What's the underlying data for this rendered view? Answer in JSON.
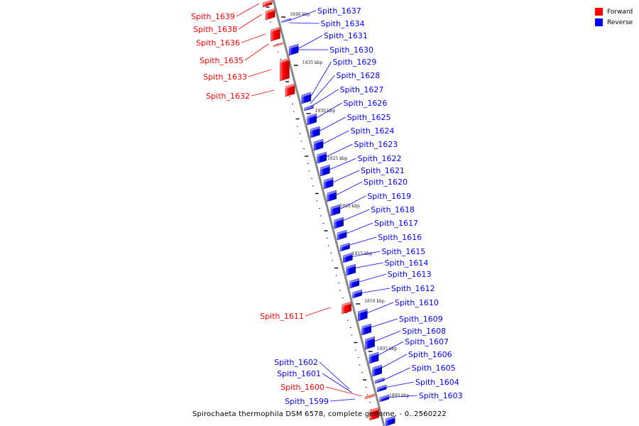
{
  "legend": {
    "forward": "Forward",
    "reverse": "Reverse"
  },
  "colors": {
    "forward": "#ff0000",
    "reverse": "#0000ff",
    "backbone": "#888888"
  },
  "caption": "Spirochaeta thermophila DSM 6578, complete genome. - 0..2560222",
  "ticks": [
    "1840 kbp",
    "1835 kbp",
    "1830 kbp",
    "1825 kbp",
    "1820 kbp",
    "1815 kbp",
    "1810 kbp",
    "1805 kbp",
    "1800 kbp"
  ],
  "forward_genes": [
    "Spith_1639",
    "Spith_1638",
    "Spith_1636",
    "Spith_1635",
    "Spith_1633",
    "Spith_1632",
    "Spith_1611",
    "Spith_1600"
  ],
  "reverse_genes_left": [
    "Spith_1602",
    "Spith_1601",
    "Spith_1599"
  ],
  "reverse_genes_right": [
    "Spith_1637",
    "Spith_1634",
    "Spith_1631",
    "Spith_1630",
    "Spith_1629",
    "Spith_1628",
    "Spith_1627",
    "Spith_1626",
    "Spith_1625",
    "Spith_1624",
    "Spith_1623",
    "Spith_1622",
    "Spith_1621",
    "Spith_1620",
    "Spith_1619",
    "Spith_1618",
    "Spith_1617",
    "Spith_1616",
    "Spith_1615",
    "Spith_1614",
    "Spith_1613",
    "Spith_1612",
    "Spith_1610",
    "Spith_1609",
    "Spith_1608",
    "Spith_1607",
    "Spith_1606",
    "Spith_1605",
    "Spith_1604",
    "Spith_1603"
  ]
}
